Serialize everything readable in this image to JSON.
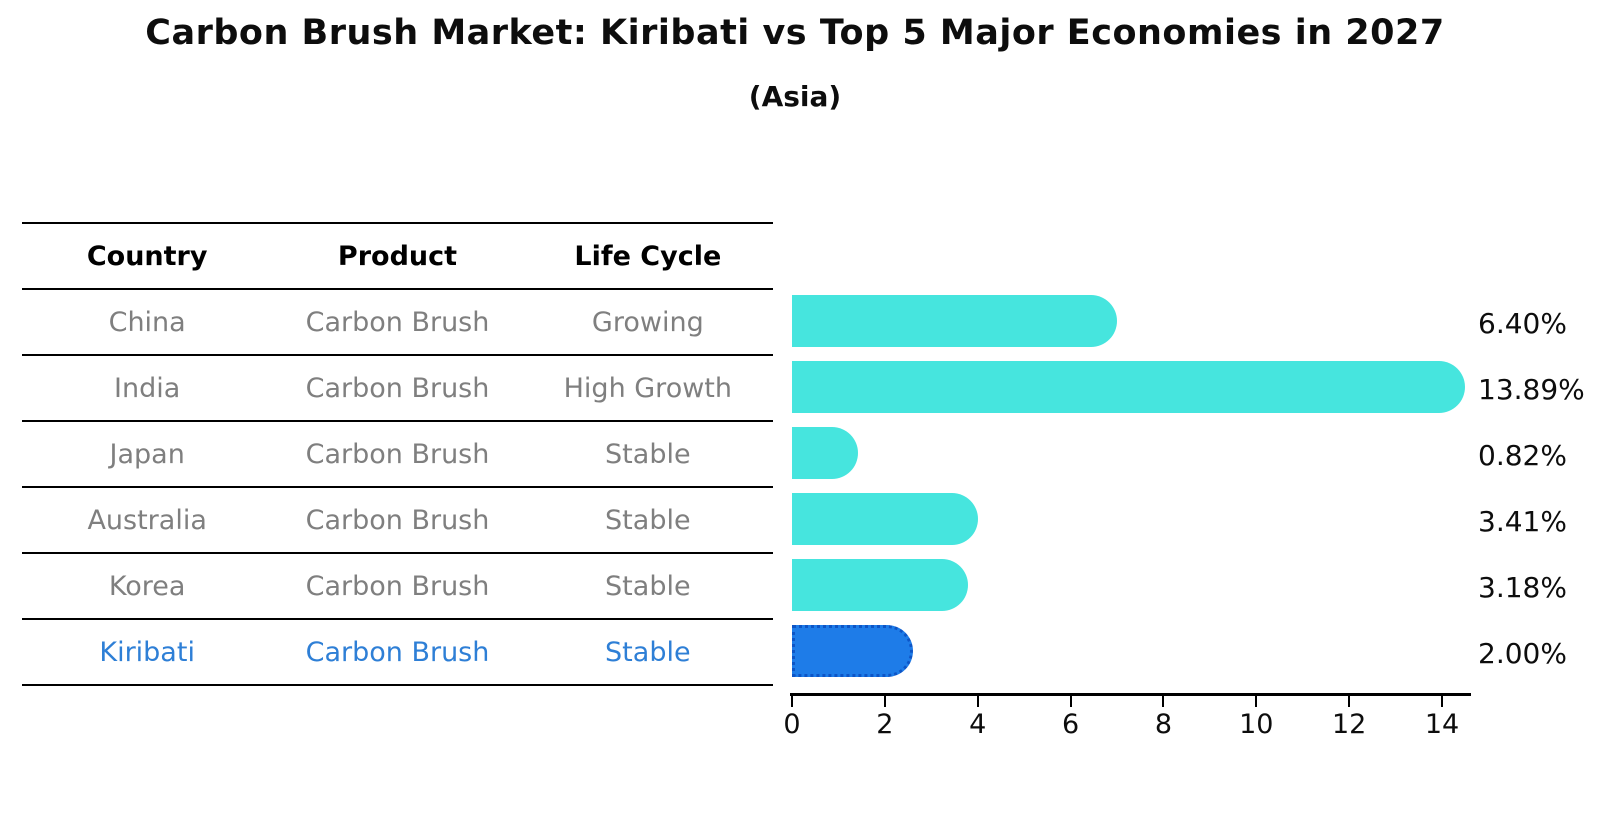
{
  "title": "Carbon Brush Market: Kiribati vs Top 5 Major Economies in 2027",
  "subtitle": "(Asia)",
  "table": {
    "headers": [
      "Country",
      "Product",
      "Life Cycle"
    ],
    "rows": [
      {
        "country": "China",
        "product": "Carbon Brush",
        "life_cycle": "Growing",
        "highlight": false
      },
      {
        "country": "India",
        "product": "Carbon Brush",
        "life_cycle": "High Growth",
        "highlight": false
      },
      {
        "country": "Japan",
        "product": "Carbon Brush",
        "life_cycle": "Stable",
        "highlight": false
      },
      {
        "country": "Australia",
        "product": "Carbon Brush",
        "life_cycle": "Stable",
        "highlight": false
      },
      {
        "country": "Korea",
        "product": "Carbon Brush",
        "life_cycle": "Stable",
        "highlight": false
      },
      {
        "country": "Kiribati",
        "product": "Carbon Brush",
        "life_cycle": "Stable",
        "highlight": true
      }
    ]
  },
  "chart_data": {
    "type": "bar",
    "orientation": "horizontal",
    "title": "Carbon Brush Market: Kiribati vs Top 5 Major Economies in 2027",
    "subtitle": "(Asia)",
    "categories": [
      "China",
      "India",
      "Japan",
      "Australia",
      "Korea",
      "Kiribati"
    ],
    "values": [
      6.4,
      13.89,
      0.82,
      3.41,
      3.18,
      2.0
    ],
    "value_labels": [
      "6.40%",
      "13.89%",
      "0.82%",
      "3.41%",
      "3.18%",
      "2.00%"
    ],
    "x_ticks": [
      0,
      2,
      4,
      6,
      8,
      10,
      12,
      14
    ],
    "xlim": [
      0,
      14.6
    ],
    "grid": false,
    "legend": "none",
    "highlight_index": 5,
    "bar_color_default": "#46e5de",
    "bar_color_highlight": "#1e7ce8",
    "highlight_border_color": "#0d55c6",
    "highlight_text_color": "#2e7fd6",
    "body_text_color": "#7f7f7f"
  }
}
